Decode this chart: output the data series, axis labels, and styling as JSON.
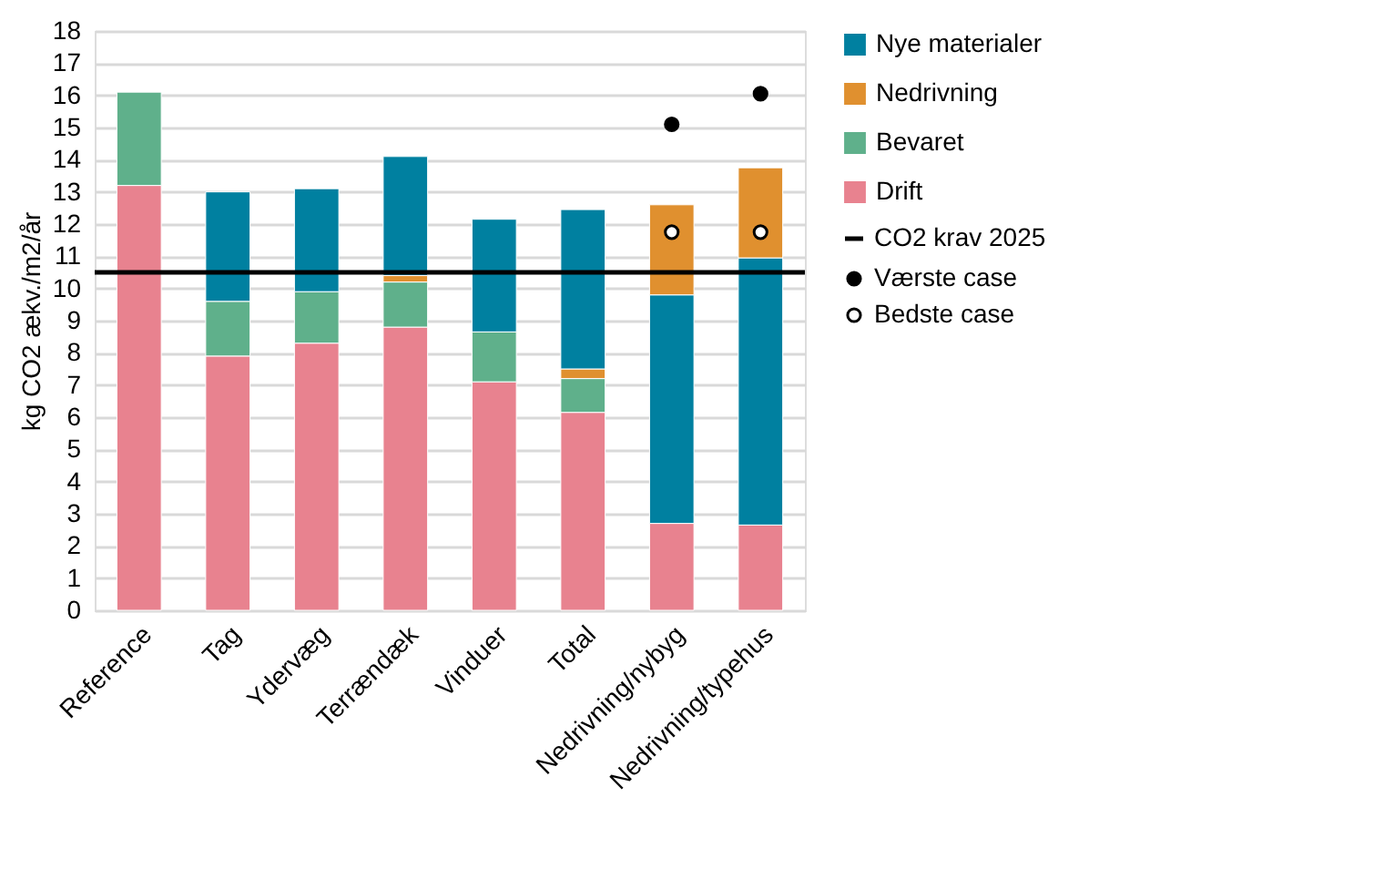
{
  "chart_data": {
    "type": "bar",
    "stacked": true,
    "categories": [
      "Reference",
      "Tag",
      "Ydervæg",
      "Terrændæk",
      "Vinduer",
      "Total",
      "Nedrivning/nybyg",
      "Nedrivning/typehus"
    ],
    "ylabel": "kg CO2 ækv./m2/år",
    "ylim": [
      0,
      18
    ],
    "yticks": [
      0,
      1,
      2,
      3,
      4,
      5,
      6,
      7,
      8,
      9,
      10,
      11,
      12,
      13,
      14,
      15,
      16,
      17,
      18
    ],
    "grid": "y",
    "legend": "top right",
    "series": [
      {
        "name": "Drift",
        "color": "#e8828f",
        "values": [
          13.2,
          7.9,
          8.3,
          8.8,
          7.1,
          6.15,
          2.7,
          2.65
        ]
      },
      {
        "name": "Bevaret",
        "color": "#5fb08b",
        "values": [
          2.9,
          1.7,
          1.6,
          1.4,
          1.55,
          1.05,
          null,
          null
        ]
      },
      {
        "name": "Nedrivning",
        "color": "#e0902f",
        "values": [
          null,
          null,
          null,
          0.2,
          null,
          0.3,
          null,
          null
        ]
      },
      {
        "name": "Nye materialer",
        "color": "#0080a0",
        "values": [
          null,
          3.4,
          3.2,
          3.7,
          3.5,
          4.95,
          7.1,
          8.3
        ]
      },
      {
        "color": "#e0902f",
        "values": [
          null,
          null,
          null,
          null,
          null,
          null,
          2.8,
          2.8
        ]
      },
      {
        "name": "Værste case",
        "type": "scatter",
        "marker": "circle",
        "color": "#000000",
        "values": [
          null,
          null,
          null,
          null,
          null,
          null,
          15.1,
          16.05
        ]
      },
      {
        "name": "Bedste case",
        "type": "scatter",
        "marker": "circle",
        "color": "#ffffff",
        "values": [
          null,
          null,
          null,
          null,
          null,
          null,
          11.75,
          11.75
        ]
      }
    ],
    "ref_lines": [
      {
        "axis": "y",
        "value": 10.5,
        "label": "CO2 krav 2025",
        "color": "#000000"
      }
    ]
  }
}
